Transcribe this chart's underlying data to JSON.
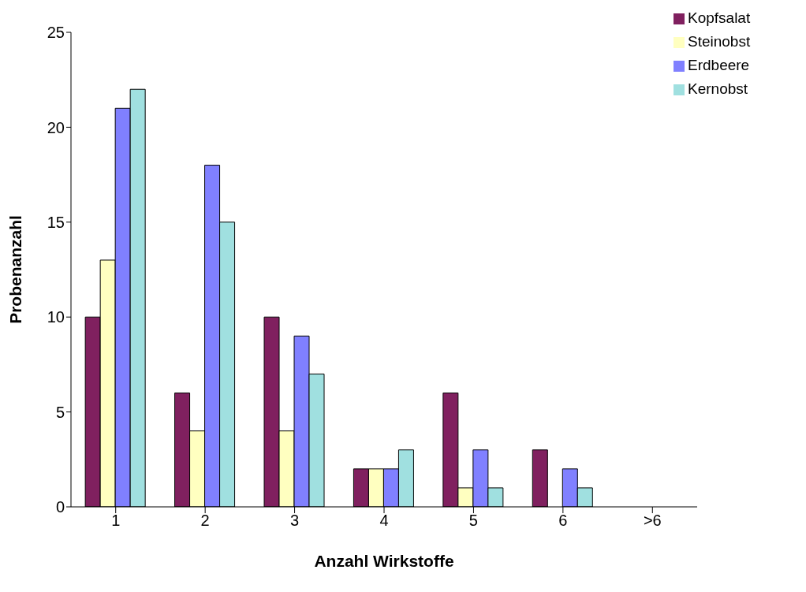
{
  "chart_data": {
    "type": "bar",
    "xlabel": "Anzahl Wirkstoffe",
    "ylabel": "Probenanzahl",
    "categories": [
      "1",
      "2",
      "3",
      "4",
      "5",
      "6",
      ">6"
    ],
    "series": [
      {
        "name": "Kopfsalat",
        "color": "#80205f",
        "values": [
          10,
          6,
          10,
          2,
          6,
          3,
          0
        ]
      },
      {
        "name": "Steinobst",
        "color": "#ffffc0",
        "values": [
          13,
          4,
          4,
          2,
          1,
          0,
          0
        ]
      },
      {
        "name": "Erdbeere",
        "color": "#8080ff",
        "values": [
          21,
          18,
          9,
          2,
          3,
          2,
          0
        ]
      },
      {
        "name": "Kernobst",
        "color": "#a0e0e0",
        "values": [
          22,
          15,
          7,
          3,
          1,
          1,
          0
        ]
      }
    ],
    "ylim": [
      0,
      25
    ],
    "yticks": [
      0,
      5,
      10,
      15,
      20,
      25
    ],
    "grid": false,
    "legend": "top right"
  }
}
